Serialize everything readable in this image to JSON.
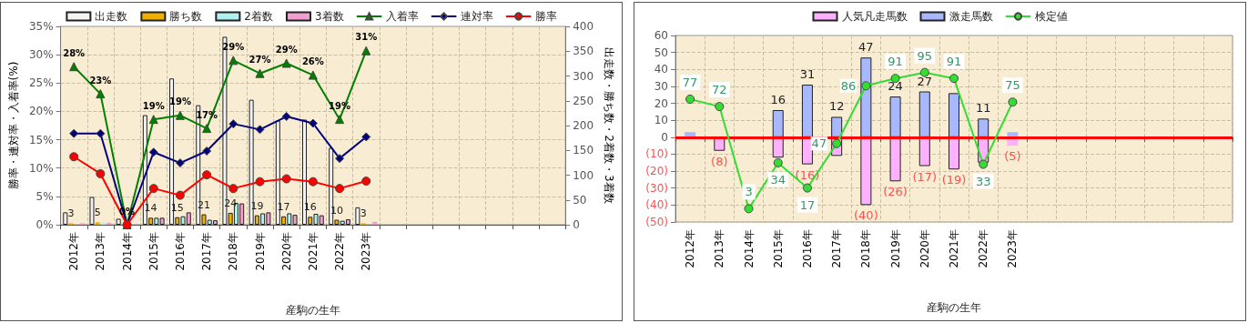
{
  "chart_data": [
    {
      "type": "bar",
      "xlabel": "産駒の生年",
      "ylabel": "勝率・連対率・入着率(%)",
      "y2label": "出走数・勝ち数・2着数・3着数",
      "categories": [
        "2012年",
        "2013年",
        "2014年",
        "2015年",
        "2016年",
        "2017年",
        "2018年",
        "2019年",
        "2020年",
        "2021年",
        "2022年",
        "2023年",
        null,
        null,
        null,
        null,
        null,
        null,
        null
      ],
      "ylim": [
        0,
        35
      ],
      "yticks": [
        {
          "value": 0,
          "label": "0%"
        },
        {
          "value": 5,
          "label": "5%"
        },
        {
          "value": 10,
          "label": "10%"
        },
        {
          "value": 15,
          "label": "15%"
        },
        {
          "value": 20,
          "label": "20%"
        },
        {
          "value": 25,
          "label": "25%"
        },
        {
          "value": 30,
          "label": "30%"
        },
        {
          "value": 35,
          "label": "35%"
        }
      ],
      "y2lim": [
        0,
        400
      ],
      "y2ticks": [
        0,
        50,
        100,
        150,
        200,
        250,
        300,
        350,
        400
      ],
      "grid": true,
      "legend": "top",
      "series": [
        {
          "name": "出走数",
          "axis": "y2",
          "color": "#f4f4f4",
          "values": [
            25,
            56,
            12,
            221,
            295,
            241,
            379,
            252,
            210,
            212,
            155,
            35,
            null,
            null,
            null,
            null,
            null,
            null,
            null
          ]
        },
        {
          "name": "勝ち数",
          "axis": "y2",
          "color": "#f0b000",
          "values": [
            3,
            5,
            null,
            14,
            15,
            21,
            24,
            19,
            17,
            16,
            10,
            3,
            null,
            null,
            null,
            null,
            null,
            null,
            null
          ],
          "value_labels": [
            "3",
            "5",
            null,
            "14",
            "15",
            "21",
            "24",
            "19",
            "17",
            "16",
            "10",
            "3",
            null,
            null,
            null,
            null,
            null,
            null,
            null
          ]
        },
        {
          "name": "2着数",
          "axis": "y2",
          "color": "#b0f0f0",
          "values": [
            null,
            4,
            null,
            14,
            17,
            10,
            44,
            23,
            23,
            22,
            8,
            null,
            null,
            null,
            null,
            null,
            null,
            null,
            null
          ]
        },
        {
          "name": "3着数",
          "axis": "y2",
          "color": "#f0a0d0",
          "values": [
            3,
            4,
            null,
            14,
            25,
            9,
            43,
            25,
            20,
            19,
            11,
            6,
            null,
            null,
            null,
            null,
            null,
            null,
            null
          ]
        },
        {
          "name": "入着率",
          "type": "line",
          "color": "#008000",
          "marker": "triangle",
          "line_style": "solid",
          "values": [
            27.9,
            23.1,
            0,
            18.6,
            19.3,
            17.0,
            29.0,
            26.7,
            28.5,
            26.4,
            18.6,
            30.7,
            null,
            null,
            null,
            null,
            null,
            null,
            null
          ],
          "value_labels": [
            "28%",
            "23%",
            "0%",
            "19%",
            "19%",
            "17%",
            "29%",
            "27%",
            "29%",
            "26%",
            "19%",
            "31%",
            null,
            null,
            null,
            null,
            null,
            null,
            null
          ]
        },
        {
          "name": "連対率",
          "type": "line",
          "color": "#000080",
          "marker": "diamond",
          "line_style": "solid",
          "values": [
            16.1,
            16.1,
            0,
            12.8,
            10.9,
            13.0,
            17.8,
            16.8,
            19.1,
            17.9,
            11.7,
            15.5,
            null,
            null,
            null,
            null,
            null,
            null,
            null
          ]
        },
        {
          "name": "勝率",
          "type": "line",
          "color": "#ff0000",
          "marker": "circle",
          "line_style": "solid",
          "values": [
            12.0,
            9.0,
            0,
            6.4,
            5.2,
            8.8,
            6.4,
            7.6,
            8.1,
            7.6,
            6.4,
            7.7,
            null,
            null,
            null,
            null,
            null,
            null,
            null
          ]
        }
      ]
    },
    {
      "type": "bar",
      "xlabel": "産駒の生年",
      "stacked": true,
      "categories": [
        "2012年",
        "2013年",
        "2014年",
        "2015年",
        "2016年",
        "2017年",
        "2018年",
        "2019年",
        "2020年",
        "2021年",
        "2022年",
        "2023年",
        null,
        null,
        null,
        null,
        null,
        null,
        null
      ],
      "ylim": [
        -50,
        60
      ],
      "yticks": [
        {
          "value": -50,
          "label": "(50)"
        },
        {
          "value": -40,
          "label": "(40)"
        },
        {
          "value": -30,
          "label": "(30)"
        },
        {
          "value": -20,
          "label": "(20)"
        },
        {
          "value": -10,
          "label": "(10)"
        },
        0,
        10,
        20,
        30,
        40,
        50,
        60
      ],
      "y2lim": [
        -6,
        120
      ],
      "grid": true,
      "legend": "top",
      "ref_lines": [
        {
          "axis": "y",
          "value": 0,
          "color": "#ff0000"
        }
      ],
      "series": [
        {
          "name": "人気凡走馬数",
          "color": "#ffb0ff",
          "values": [
            null,
            -8,
            null,
            -12,
            -16,
            -11,
            -40,
            -26,
            -17,
            -19,
            -15,
            -5,
            null,
            null,
            null,
            null,
            null,
            null,
            null
          ],
          "value_labels": [
            null,
            "(8)",
            null,
            null,
            "(16)",
            null,
            "(40)",
            "(26)",
            "(17)",
            "(19)",
            null,
            "(5)",
            null,
            null,
            null,
            null,
            null,
            null,
            null
          ]
        },
        {
          "name": "激走馬数",
          "color": "#a8b8ff",
          "values": [
            3,
            null,
            null,
            16,
            31,
            12,
            47,
            24,
            27,
            26,
            11,
            3,
            null,
            null,
            null,
            null,
            null,
            null,
            null
          ],
          "value_labels": [
            null,
            null,
            null,
            "16",
            "31",
            "12",
            "47",
            "24",
            "27",
            null,
            "11",
            null,
            null,
            null,
            null,
            null,
            null,
            null,
            null
          ]
        },
        {
          "name": "検定値",
          "type": "line",
          "axis": "y2",
          "color": "#33dd33",
          "marker": "circle",
          "line_style": "solid",
          "values": [
            77,
            72,
            3,
            34,
            17,
            47,
            86,
            91,
            95,
            91,
            33,
            75,
            null,
            null,
            null,
            null,
            null,
            null,
            null
          ],
          "value_labels": [
            "77",
            "72",
            "3",
            "34",
            "17",
            "47",
            "86",
            "91",
            "95",
            "91",
            "33",
            "75",
            null,
            null,
            null,
            null,
            null,
            null,
            null
          ]
        }
      ]
    }
  ]
}
